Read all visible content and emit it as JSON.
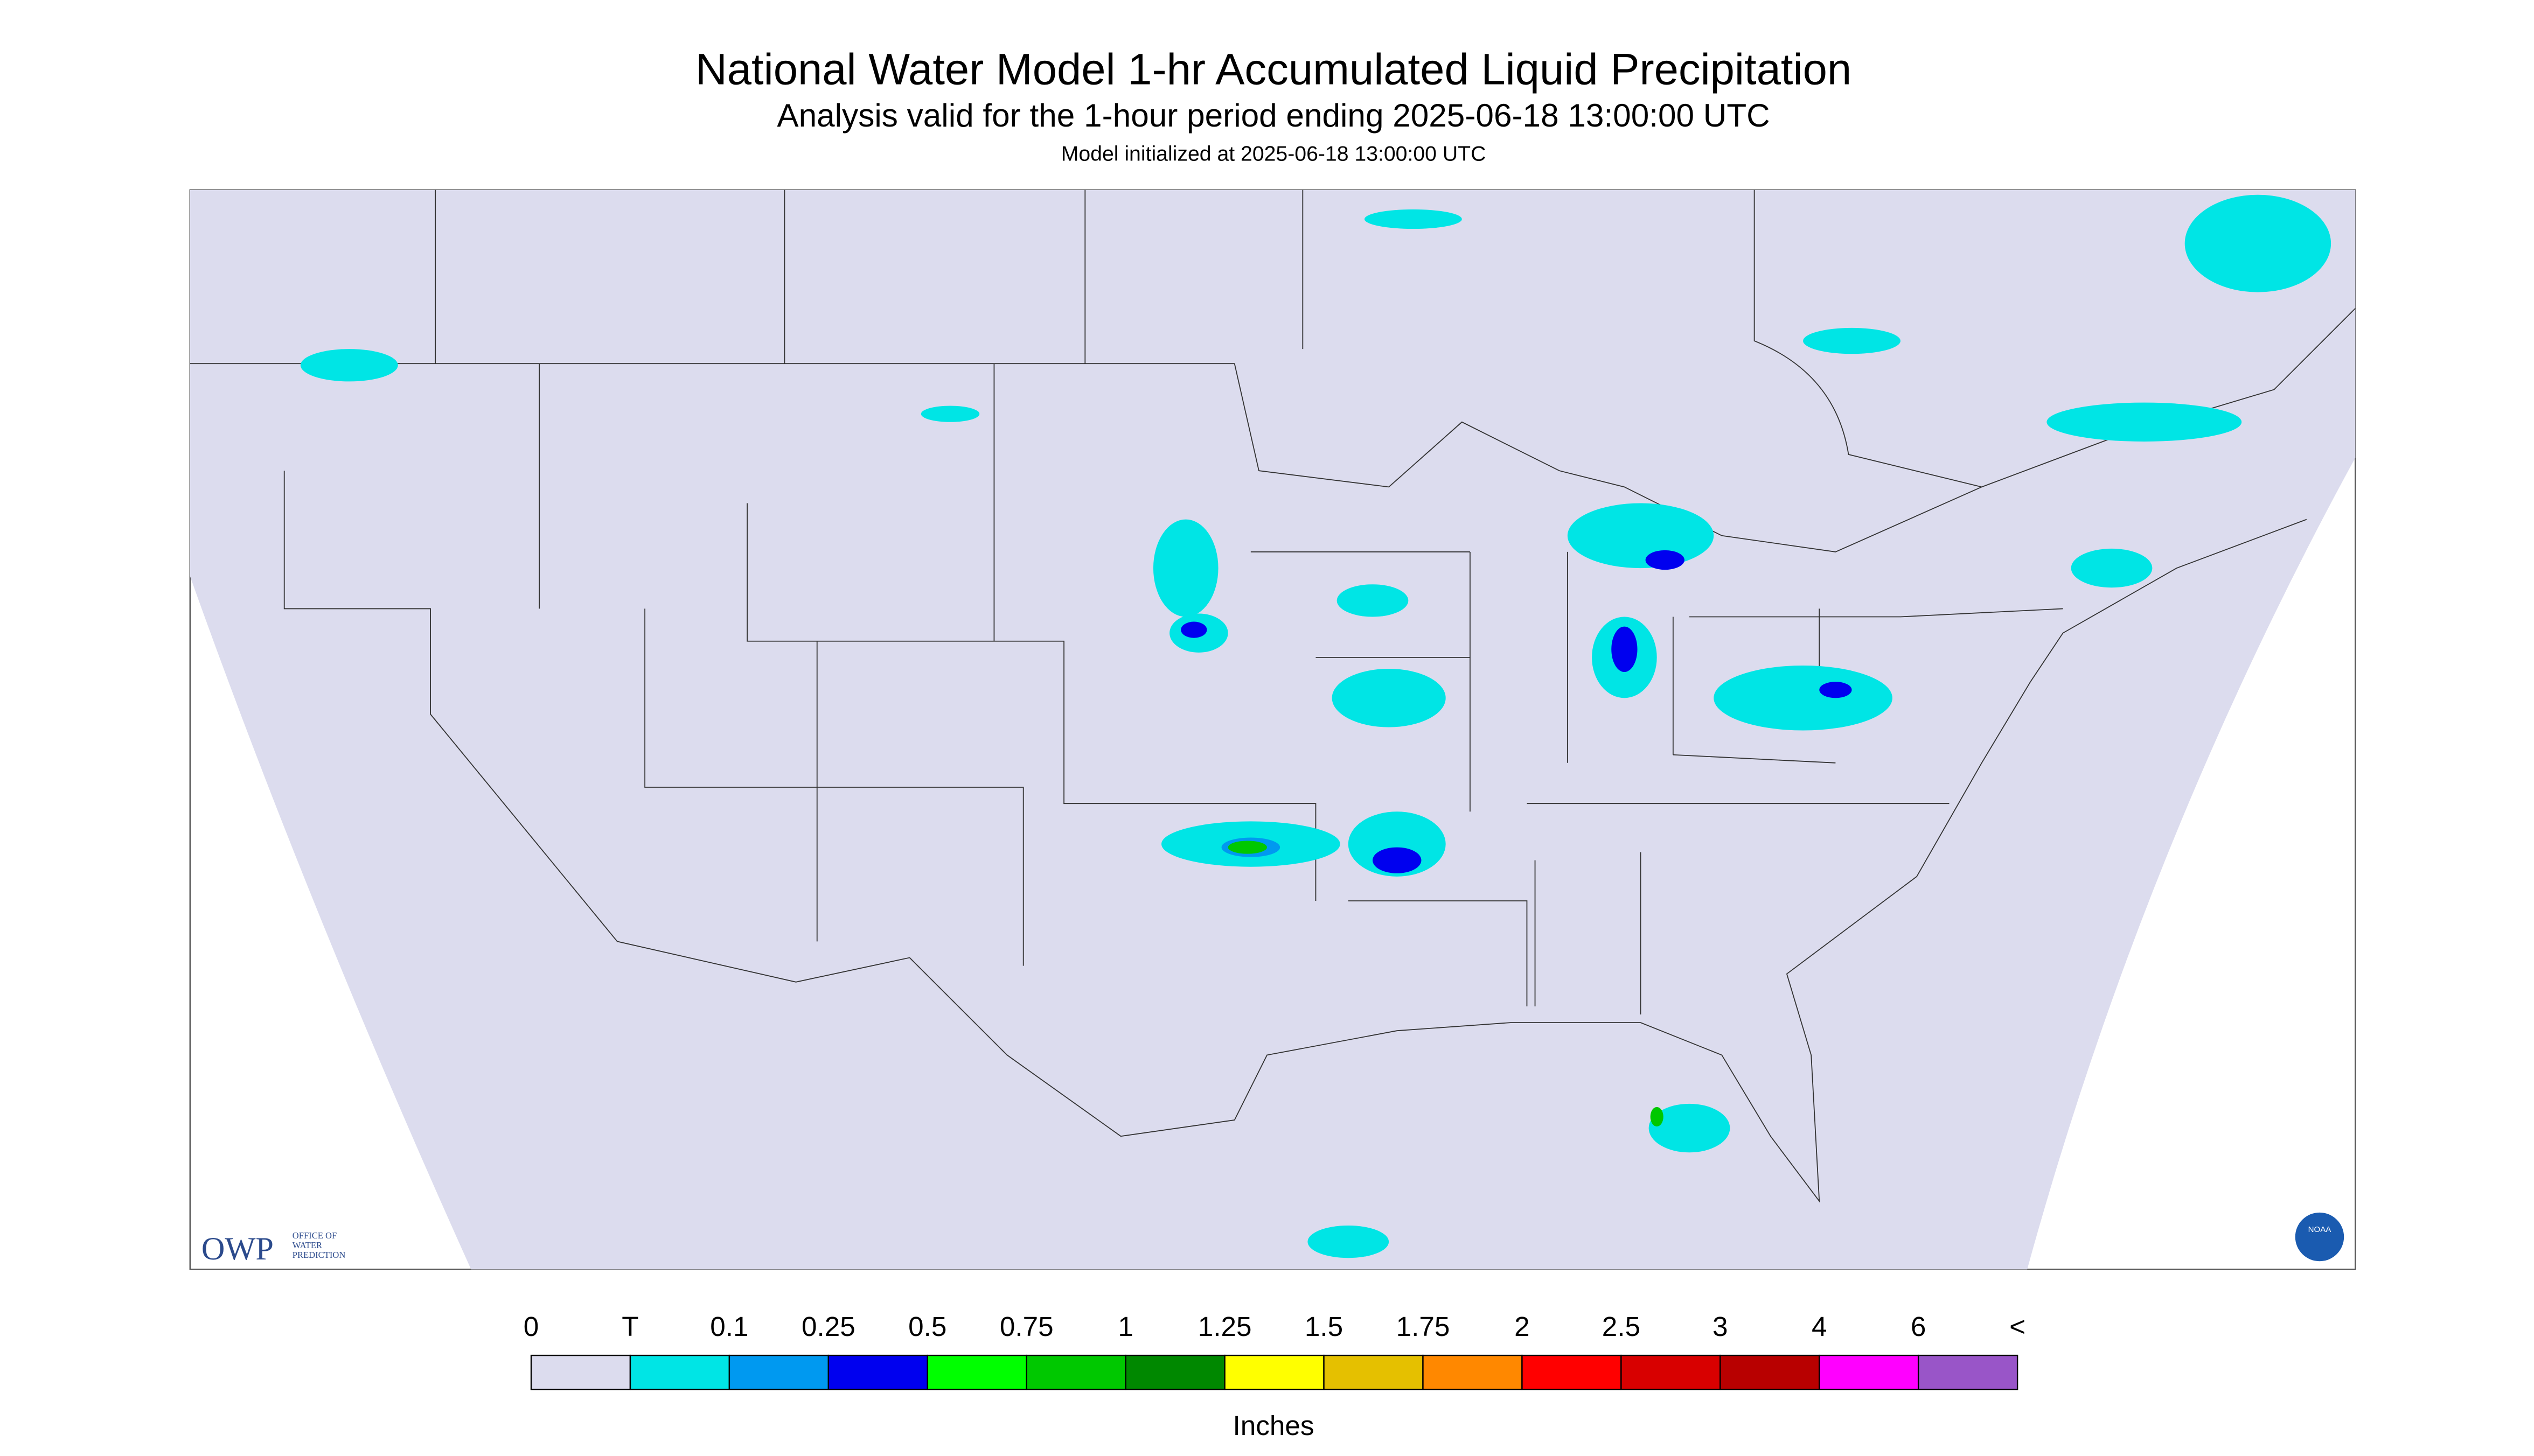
{
  "header": {
    "title": "National Water Model 1-hr Accumulated Liquid Precipitation",
    "subtitle": "Analysis valid for the 1-hour period ending 2025-06-18 13:00:00 UTC",
    "init": "Model initialized at 2025-06-18 13:00:00 UTC"
  },
  "logo": {
    "acronym": "OWP",
    "lines": [
      "OFFICE OF",
      "WATER",
      "PREDICTION"
    ],
    "noaa": "NOAA"
  },
  "legend": {
    "labels": [
      "0",
      "T",
      "0.1",
      "0.25",
      "0.5",
      "0.75",
      "1",
      "1.25",
      "1.5",
      "1.75",
      "2",
      "2.5",
      "3",
      "4",
      "6",
      "<"
    ],
    "colors": [
      "#dcdcee",
      "#00e5e5",
      "#0099f0",
      "#0000ef",
      "#00ff00",
      "#00c800",
      "#008800",
      "#ffff00",
      "#e5c000",
      "#ff8800",
      "#ff0000",
      "#d80000",
      "#b80000",
      "#ff00ff",
      "#9955c8"
    ],
    "unit": "Inches"
  }
}
